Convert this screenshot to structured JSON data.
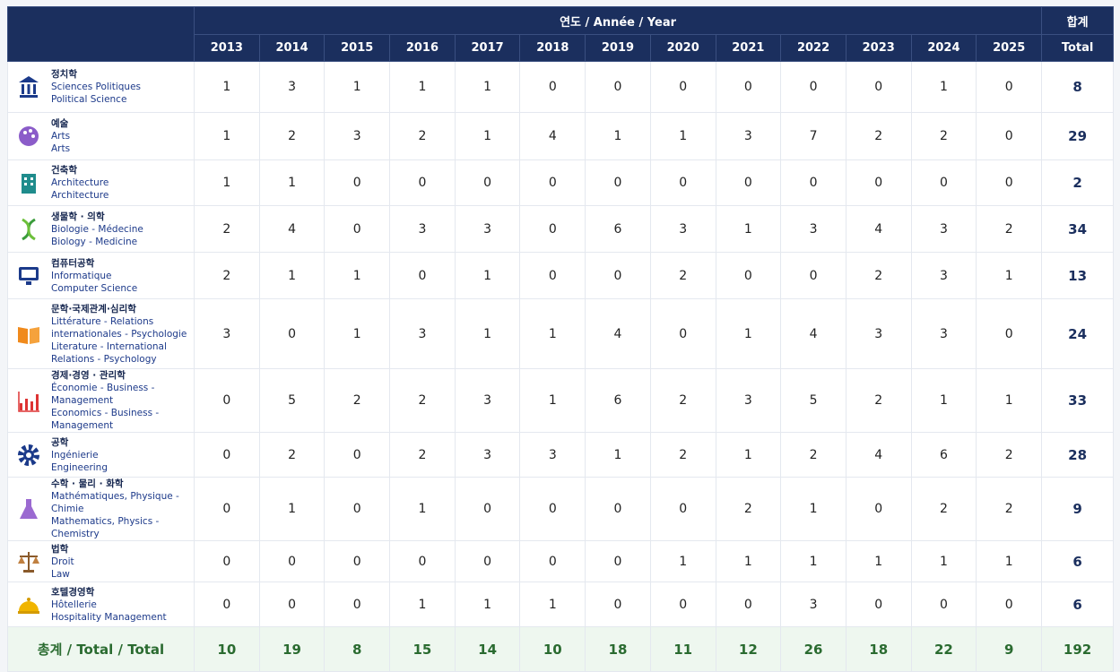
{
  "header": {
    "group": "연도 / Année / Year",
    "years": [
      "2013",
      "2014",
      "2015",
      "2016",
      "2017",
      "2018",
      "2019",
      "2020",
      "2021",
      "2022",
      "2023",
      "2024",
      "2025"
    ],
    "total_ko": "합계",
    "total": "Total"
  },
  "rows": [
    {
      "ko": "정치학",
      "fr": "Sciences Politiques",
      "en": "Political Science",
      "values": [
        "1",
        "3",
        "1",
        "1",
        "1",
        "0",
        "0",
        "0",
        "0",
        "0",
        "0",
        "1",
        "0"
      ],
      "total": "8"
    },
    {
      "ko": "예술",
      "fr": "Arts",
      "en": "Arts",
      "values": [
        "1",
        "2",
        "3",
        "2",
        "1",
        "4",
        "1",
        "1",
        "3",
        "7",
        "2",
        "2",
        "0"
      ],
      "total": "29"
    },
    {
      "ko": "건축학",
      "fr": "Architecture",
      "en": "Architecture",
      "values": [
        "1",
        "1",
        "0",
        "0",
        "0",
        "0",
        "0",
        "0",
        "0",
        "0",
        "0",
        "0",
        "0"
      ],
      "total": "2"
    },
    {
      "ko": "생물학 · 의학",
      "fr": "Biologie - Médecine",
      "en": "Biology - Medicine",
      "values": [
        "2",
        "4",
        "0",
        "3",
        "3",
        "0",
        "6",
        "3",
        "1",
        "3",
        "4",
        "3",
        "2"
      ],
      "total": "34"
    },
    {
      "ko": "컴퓨터공학",
      "fr": "Informatique",
      "en": "Computer Science",
      "values": [
        "2",
        "1",
        "1",
        "0",
        "1",
        "0",
        "0",
        "2",
        "0",
        "0",
        "2",
        "3",
        "1"
      ],
      "total": "13"
    },
    {
      "ko": "문학·국제관계·심리학",
      "fr": "Littérature - Relations internationales - Psychologie",
      "en": "Literature - International Relations - Psychology",
      "values": [
        "3",
        "0",
        "1",
        "3",
        "1",
        "1",
        "4",
        "0",
        "1",
        "4",
        "3",
        "3",
        "0"
      ],
      "total": "24"
    },
    {
      "ko": "경제·경영 · 관리학",
      "fr": "Économie - Business - Management",
      "en": "Economics - Business - Management",
      "values": [
        "0",
        "5",
        "2",
        "2",
        "3",
        "1",
        "6",
        "2",
        "3",
        "5",
        "2",
        "1",
        "1"
      ],
      "total": "33"
    },
    {
      "ko": "공학",
      "fr": "Ingénierie",
      "en": "Engineering",
      "values": [
        "0",
        "2",
        "0",
        "2",
        "3",
        "3",
        "1",
        "2",
        "1",
        "2",
        "4",
        "6",
        "2"
      ],
      "total": "28"
    },
    {
      "ko": "수학 · 물리 · 화학",
      "fr": "Mathématiques, Physique - Chimie",
      "en": "Mathematics, Physics - Chemistry",
      "values": [
        "0",
        "1",
        "0",
        "1",
        "0",
        "0",
        "0",
        "0",
        "2",
        "1",
        "0",
        "2",
        "2"
      ],
      "total": "9"
    },
    {
      "ko": "법학",
      "fr": "Droit",
      "en": "Law",
      "values": [
        "0",
        "0",
        "0",
        "0",
        "0",
        "0",
        "0",
        "1",
        "1",
        "1",
        "1",
        "1",
        "1"
      ],
      "total": "6"
    },
    {
      "ko": "호텔경영학",
      "fr": "Hôtellerie",
      "en": "Hospitality Management",
      "values": [
        "0",
        "0",
        "0",
        "1",
        "1",
        "1",
        "0",
        "0",
        "0",
        "3",
        "0",
        "0",
        "0"
      ],
      "total": "6"
    }
  ],
  "footer": {
    "label": "총계 / Total / Total",
    "values": [
      "10",
      "19",
      "8",
      "15",
      "14",
      "10",
      "18",
      "11",
      "12",
      "26",
      "18",
      "22",
      "9"
    ],
    "total": "192"
  }
}
